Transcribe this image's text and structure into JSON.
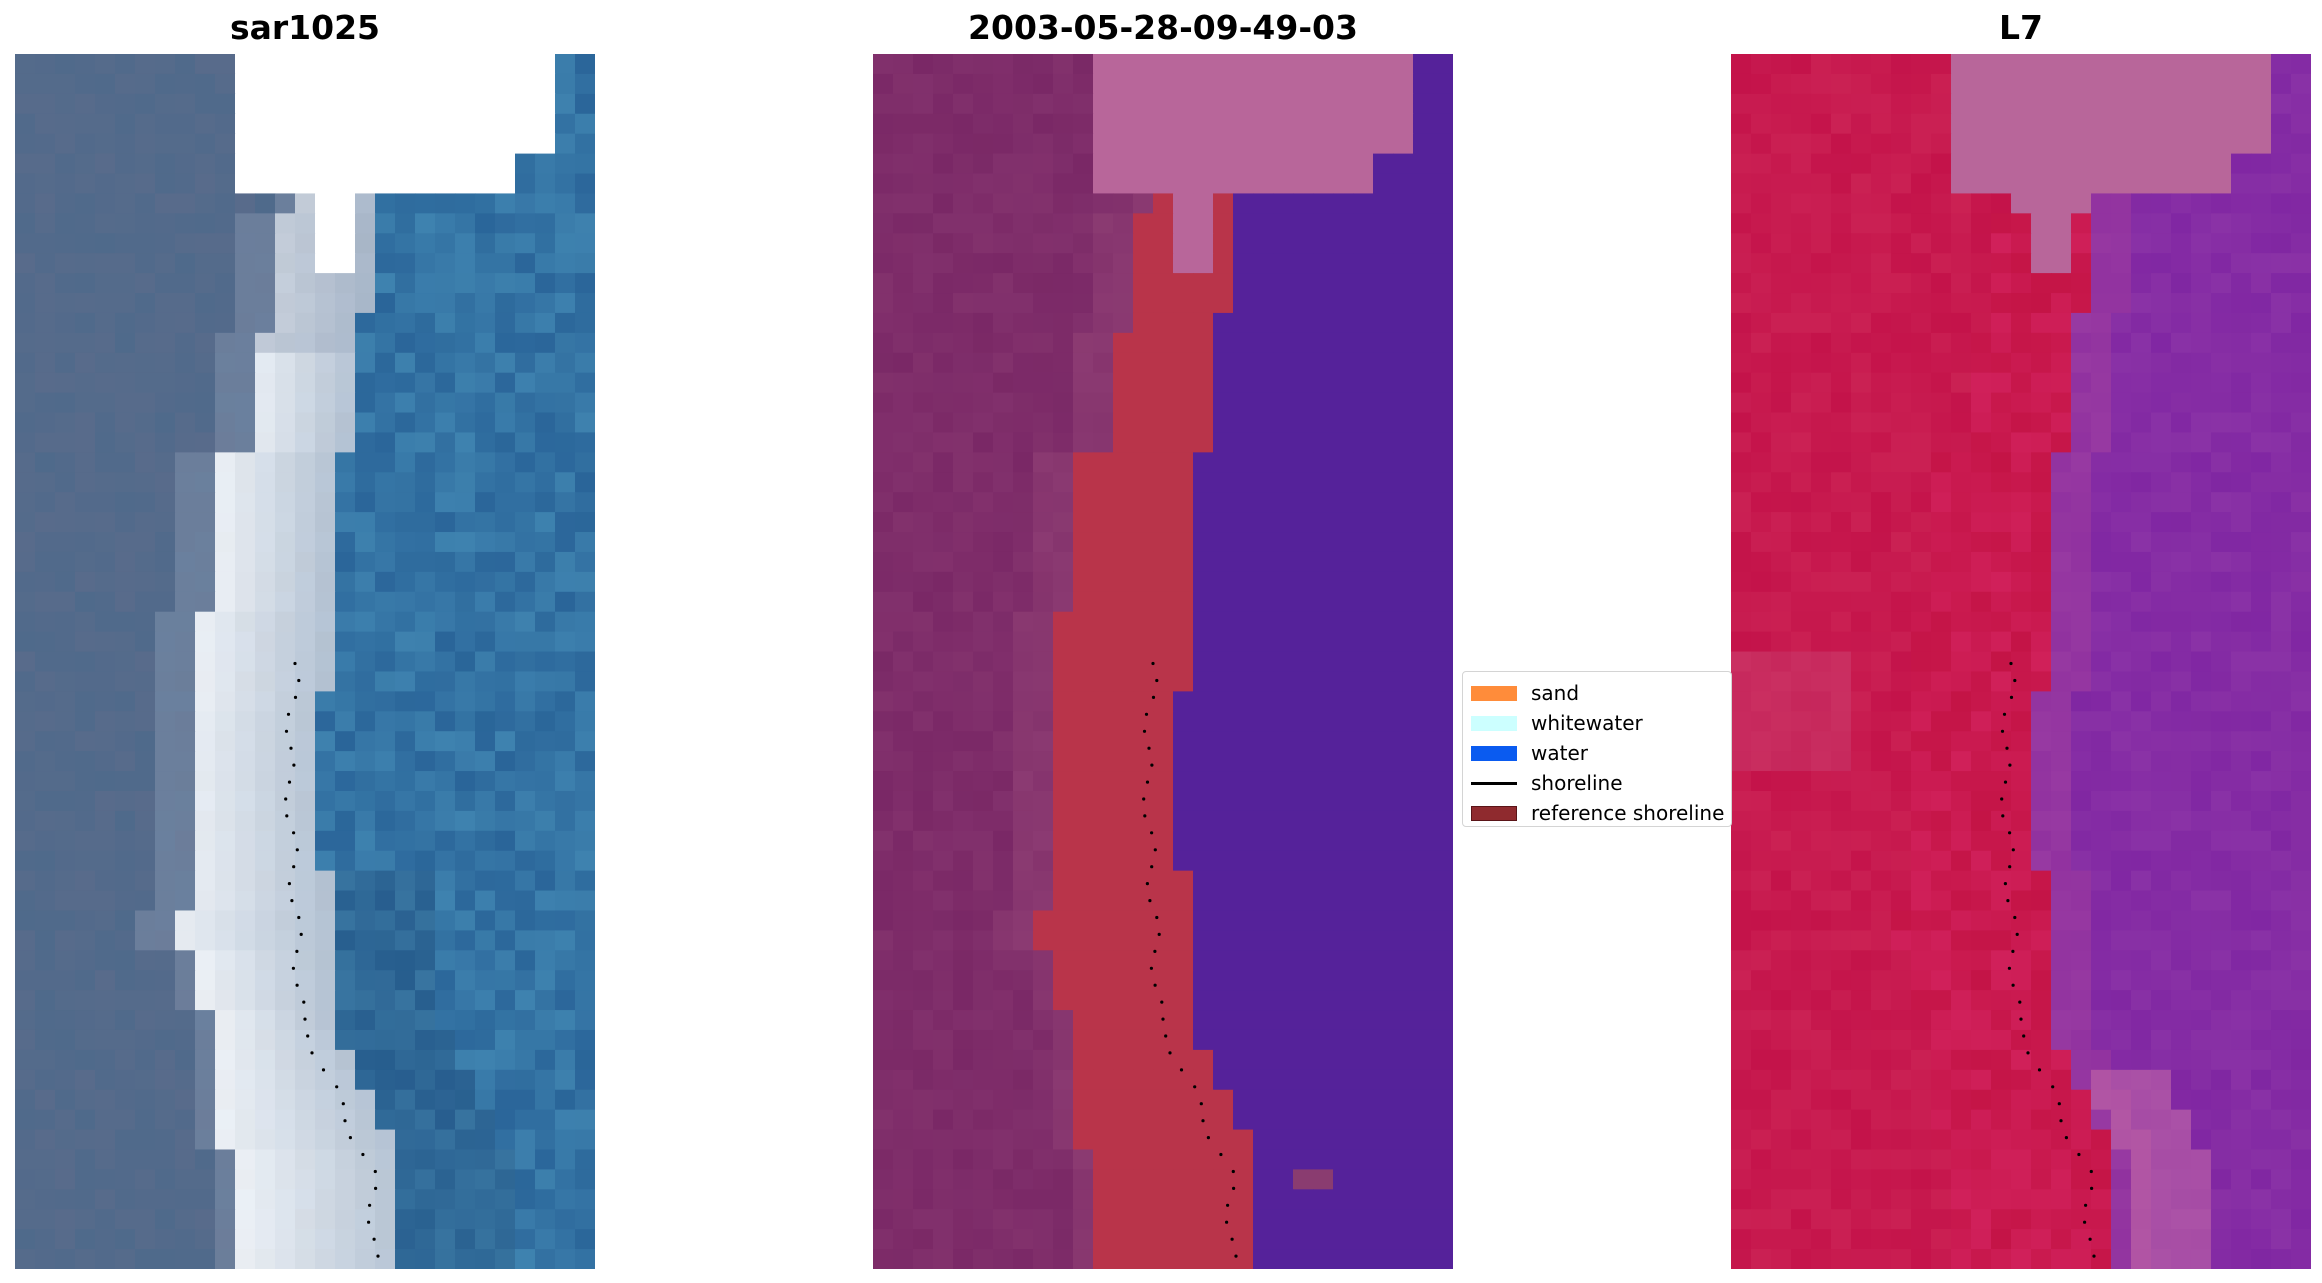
{
  "panels": [
    {
      "title": "sar1025",
      "kind": "rgb"
    },
    {
      "title": "2003-05-28-09-49-03",
      "kind": "classified"
    },
    {
      "title": "L7",
      "kind": "index"
    }
  ],
  "legend": {
    "items": [
      {
        "label": "sand",
        "color": "#ff8c3a",
        "type": "patch"
      },
      {
        "label": "whitewater",
        "color": "#ccffff",
        "type": "patch"
      },
      {
        "label": "water",
        "color": "#0a5bf0",
        "type": "patch"
      },
      {
        "label": "shoreline",
        "color": "#000000",
        "type": "line"
      },
      {
        "label": "reference shoreline",
        "color": "#8f2a2e",
        "type": "patch"
      }
    ]
  },
  "colors": {
    "nodata_overlay": "#b8669a",
    "classified_land": "#7a2866",
    "classified_sand_overlay": "#b9344a",
    "classified_water_overlay": "#55229a",
    "index_land": "#c4134a",
    "index_water": "#8a32a6",
    "shoreline_dots": "#000000"
  }
}
